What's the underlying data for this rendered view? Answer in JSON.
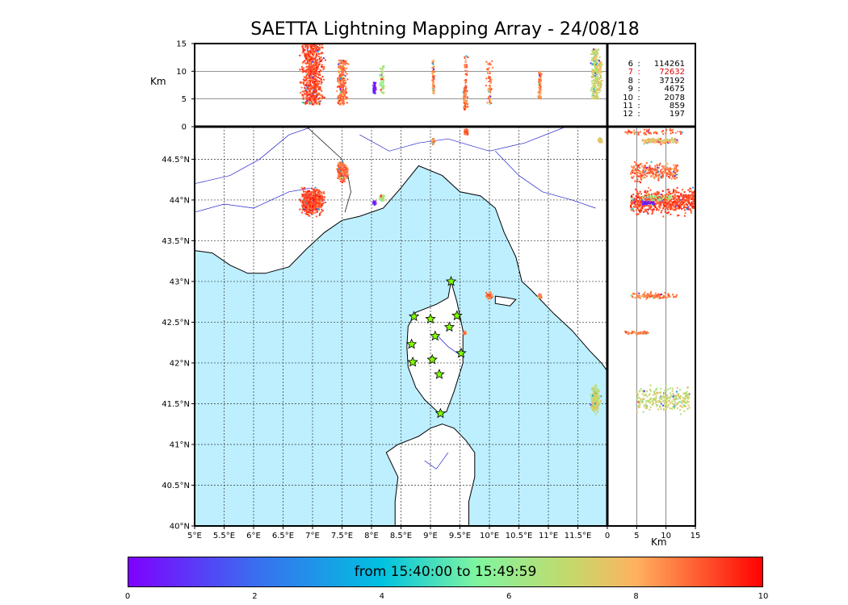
{
  "title": "SAETTA Lightning Mapping Array - 24/08/18",
  "chart_data": {
    "type": "scatter",
    "title": "SAETTA Lightning Mapping Array - 24/08/18",
    "map": {
      "x_ticks": [
        "5°E",
        "5.5°E",
        "6°E",
        "6.5°E",
        "7°E",
        "7.5°E",
        "8°E",
        "8.5°E",
        "9°E",
        "9.5°E",
        "10°E",
        "10.5°E",
        "11°E",
        "11.5°E"
      ],
      "y_ticks": [
        "40°N",
        "40.5°N",
        "41°N",
        "41.5°N",
        "42°N",
        "42.5°N",
        "43°N",
        "43.5°N",
        "44°N",
        "44.5°N"
      ],
      "xlim": [
        5,
        12
      ],
      "ylim": [
        40,
        44.9
      ],
      "grid": true
    },
    "altitude_top": {
      "ylabel": "Km",
      "y_ticks": [
        "0",
        "5",
        "10",
        "15"
      ],
      "ylim": [
        0,
        15
      ]
    },
    "altitude_side": {
      "xlabel": "Km",
      "x_ticks": [
        "0",
        "5",
        "10",
        "15"
      ],
      "xlim": [
        0,
        15
      ]
    },
    "station_counts": [
      {
        "stations": "6",
        "count": "114261",
        "highlight": false
      },
      {
        "stations": "7",
        "count": "72632",
        "highlight": true
      },
      {
        "stations": "8",
        "count": "37192",
        "highlight": false
      },
      {
        "stations": "9",
        "count": "4675",
        "highlight": false
      },
      {
        "stations": "10",
        "count": "2078",
        "highlight": false
      },
      {
        "stations": "11",
        "count": "859",
        "highlight": false
      },
      {
        "stations": "12",
        "count": "197",
        "highlight": false
      }
    ],
    "colorbar": {
      "label": "from 15:40:00 to 15:49:59",
      "ticks": [
        "0",
        "2",
        "4",
        "6",
        "8",
        "10"
      ],
      "range": [
        0,
        10
      ]
    },
    "stations": [
      {
        "lon": 9.35,
        "lat": 43.0
      },
      {
        "lon": 8.72,
        "lat": 42.57
      },
      {
        "lon": 9.0,
        "lat": 42.54
      },
      {
        "lon": 9.45,
        "lat": 42.58
      },
      {
        "lon": 9.32,
        "lat": 42.44
      },
      {
        "lon": 9.08,
        "lat": 42.33
      },
      {
        "lon": 8.68,
        "lat": 42.23
      },
      {
        "lon": 9.52,
        "lat": 42.12
      },
      {
        "lon": 9.03,
        "lat": 42.04
      },
      {
        "lon": 8.7,
        "lat": 42.01
      },
      {
        "lon": 9.15,
        "lat": 41.86
      },
      {
        "lon": 9.17,
        "lat": 41.38
      }
    ],
    "lightning_clusters": [
      {
        "lon": 7.0,
        "lat": 43.98,
        "dlon": 0.25,
        "dlat": 0.2,
        "alt_min": 4,
        "alt_max": 15,
        "time": 9.2
      },
      {
        "lon": 7.5,
        "lat": 44.35,
        "dlon": 0.12,
        "dlat": 0.15,
        "alt_min": 4,
        "alt_max": 12,
        "time": 8.8
      },
      {
        "lon": 8.18,
        "lat": 44.03,
        "dlon": 0.05,
        "dlat": 0.06,
        "alt_min": 6,
        "alt_max": 11,
        "time": 6.5
      },
      {
        "lon": 8.05,
        "lat": 43.96,
        "dlon": 0.03,
        "dlat": 0.03,
        "alt_min": 6,
        "alt_max": 8,
        "time": 0.6
      },
      {
        "lon": 9.05,
        "lat": 44.72,
        "dlon": 0.03,
        "dlat": 0.05,
        "alt_min": 6,
        "alt_max": 12,
        "time": 8.5
      },
      {
        "lon": 9.6,
        "lat": 44.83,
        "dlon": 0.05,
        "dlat": 0.05,
        "alt_min": 3,
        "alt_max": 13,
        "time": 8.9
      },
      {
        "lon": 10.0,
        "lat": 42.83,
        "dlon": 0.07,
        "dlat": 0.06,
        "alt_min": 4,
        "alt_max": 12,
        "time": 8.7
      },
      {
        "lon": 10.85,
        "lat": 42.82,
        "dlon": 0.04,
        "dlat": 0.03,
        "alt_min": 5,
        "alt_max": 10,
        "time": 8.5
      },
      {
        "lon": 9.58,
        "lat": 42.37,
        "dlon": 0.03,
        "dlat": 0.02,
        "alt_min": 3,
        "alt_max": 7,
        "time": 8.6
      },
      {
        "lon": 11.8,
        "lat": 41.55,
        "dlon": 0.1,
        "dlat": 0.2,
        "alt_min": 5,
        "alt_max": 14,
        "time": 7.0
      },
      {
        "lon": 11.88,
        "lat": 44.73,
        "dlon": 0.05,
        "dlat": 0.04,
        "alt_min": 6,
        "alt_max": 12,
        "time": 7.5
      }
    ]
  }
}
